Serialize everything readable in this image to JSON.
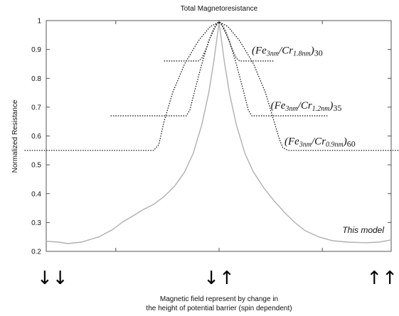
{
  "chart_data": {
    "type": "line",
    "title": "Total Magnetoresistance",
    "xlabel_lines": [
      "Magnetic field represent by change in",
      "the height of potential barrier (spin dependent)"
    ],
    "ylabel": "Normalized Resistance",
    "xlim": [
      -1,
      1
    ],
    "ylim": [
      0.2,
      1.0
    ],
    "yticks": [
      "0.2",
      "0.3",
      "0.4",
      "0.5",
      "0.6",
      "0.7",
      "0.8",
      "0.9",
      "1"
    ],
    "ytick_values": [
      0.2,
      0.3,
      0.4,
      0.5,
      0.6,
      0.7,
      0.8,
      0.9,
      1.0
    ],
    "xtick_values": [
      -0.6,
      0.0,
      0.6
    ],
    "grid": false,
    "series": [
      {
        "style": "solid-gray",
        "points": [
          [
            -1.0,
            0.235
          ],
          [
            -0.93,
            0.232
          ],
          [
            -0.88,
            0.227
          ],
          [
            -0.8,
            0.232
          ],
          [
            -0.7,
            0.25
          ],
          [
            -0.62,
            0.275
          ],
          [
            -0.56,
            0.302
          ],
          [
            -0.5,
            0.323
          ],
          [
            -0.44,
            0.345
          ],
          [
            -0.38,
            0.363
          ],
          [
            -0.32,
            0.39
          ],
          [
            -0.26,
            0.425
          ],
          [
            -0.2,
            0.475
          ],
          [
            -0.15,
            0.54
          ],
          [
            -0.1,
            0.64
          ],
          [
            -0.06,
            0.75
          ],
          [
            -0.03,
            0.86
          ],
          [
            -0.01,
            0.95
          ],
          [
            0.0,
            0.99
          ],
          [
            0.01,
            0.95
          ],
          [
            0.03,
            0.86
          ],
          [
            0.06,
            0.75
          ],
          [
            0.1,
            0.64
          ],
          [
            0.15,
            0.54
          ],
          [
            0.2,
            0.475
          ],
          [
            0.26,
            0.42
          ],
          [
            0.32,
            0.375
          ],
          [
            0.38,
            0.335
          ],
          [
            0.44,
            0.3
          ],
          [
            0.5,
            0.272
          ],
          [
            0.58,
            0.25
          ],
          [
            0.66,
            0.237
          ],
          [
            0.75,
            0.232
          ],
          [
            0.85,
            0.23
          ],
          [
            0.93,
            0.232
          ],
          [
            1.0,
            0.24
          ]
        ]
      },
      {
        "style": "dotted",
        "points": [
          [
            -0.32,
            0.86
          ],
          [
            -0.12,
            0.86
          ],
          [
            -0.1,
            0.87
          ],
          [
            -0.07,
            0.91
          ],
          [
            -0.04,
            0.96
          ],
          [
            -0.015,
            0.99
          ],
          [
            0.0,
            0.995
          ],
          [
            0.015,
            0.99
          ],
          [
            0.04,
            0.96
          ],
          [
            0.07,
            0.91
          ],
          [
            0.1,
            0.87
          ],
          [
            0.12,
            0.86
          ],
          [
            0.32,
            0.86
          ]
        ]
      },
      {
        "style": "dotted",
        "points": [
          [
            -0.63,
            0.67
          ],
          [
            -0.19,
            0.67
          ],
          [
            -0.17,
            0.69
          ],
          [
            -0.14,
            0.76
          ],
          [
            -0.1,
            0.85
          ],
          [
            -0.06,
            0.93
          ],
          [
            -0.02,
            0.98
          ],
          [
            0.0,
            0.995
          ],
          [
            0.02,
            0.98
          ],
          [
            0.06,
            0.93
          ],
          [
            0.1,
            0.85
          ],
          [
            0.14,
            0.76
          ],
          [
            0.17,
            0.69
          ],
          [
            0.19,
            0.67
          ],
          [
            0.63,
            0.67
          ]
        ]
      },
      {
        "style": "dotted",
        "points": [
          [
            -1.13,
            0.55
          ],
          [
            -0.38,
            0.55
          ],
          [
            -0.35,
            0.57
          ],
          [
            -0.32,
            0.65
          ],
          [
            -0.27,
            0.75
          ],
          [
            -0.2,
            0.85
          ],
          [
            -0.12,
            0.93
          ],
          [
            -0.05,
            0.98
          ],
          [
            0.0,
            0.995
          ],
          [
            0.05,
            0.98
          ],
          [
            0.12,
            0.93
          ],
          [
            0.2,
            0.85
          ],
          [
            0.27,
            0.75
          ],
          [
            0.32,
            0.65
          ],
          [
            0.35,
            0.59
          ],
          [
            0.37,
            0.56
          ],
          [
            0.4,
            0.55
          ],
          [
            1.13,
            0.55
          ]
        ]
      }
    ],
    "annotations": [
      {
        "key": "s1",
        "base": "(Fe",
        "sub1": "3nm",
        "mid": "/Cr",
        "sub2": "1.8nm",
        "close": ")",
        "count": "30",
        "x": 0.19,
        "y": 0.885
      },
      {
        "key": "s2",
        "base": "(Fe",
        "sub1": "3nm",
        "mid": "/Cr",
        "sub2": "1.2nm",
        "close": ")",
        "count": "35",
        "x": 0.3,
        "y": 0.695
      },
      {
        "key": "s3",
        "base": "(Fe",
        "sub1": "3nm",
        "mid": "/Cr",
        "sub2": "0.9nm",
        "close": ")",
        "count": "60",
        "x": 0.38,
        "y": 0.57
      }
    ],
    "model_label": "This model",
    "spin_arrows": [
      {
        "glyphs": "↓↓",
        "x": -1.15
      },
      {
        "glyphs": "↓↑",
        "x": 0.0
      },
      {
        "glyphs": "↑↑",
        "x": 1.15
      }
    ]
  }
}
